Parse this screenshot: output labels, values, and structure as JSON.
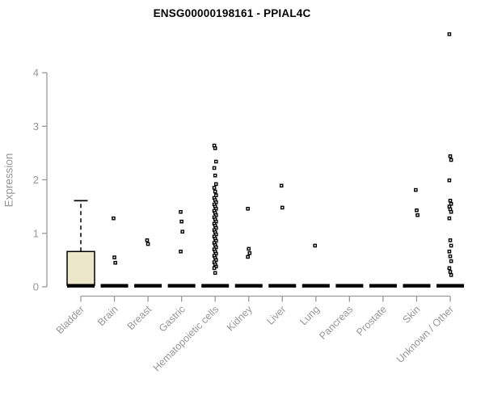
{
  "title": "ENSG00000198161 - PPIAL4C",
  "chart_data": {
    "type": "boxplot",
    "title": "ENSG00000198161 - PPIAL4C",
    "xlabel": "",
    "ylabel": "Expression",
    "ylim": [
      0,
      4.8
    ],
    "yticks": [
      0,
      1,
      2,
      3,
      4
    ],
    "grid": false,
    "legend": false,
    "categories": [
      "Bladder",
      "Brain",
      "Breast",
      "Gastric",
      "Hematopoietic cells",
      "Kidney",
      "Liver",
      "Lung",
      "Pancreas",
      "Prostate",
      "Skin",
      "Unknown / Other"
    ],
    "boxes": [
      {
        "category": "Bladder",
        "q1": 0.03,
        "median": 0.02,
        "q3": 0.66,
        "whisker_low": 0,
        "whisker_high": 1.61,
        "points": []
      },
      {
        "category": "Brain",
        "q1": 0,
        "median": 0.02,
        "q3": 0.04,
        "points": [
          1.28,
          0.55,
          0.45
        ]
      },
      {
        "category": "Breast",
        "q1": 0,
        "median": 0.02,
        "q3": 0.04,
        "points": [
          0.87,
          0.8
        ]
      },
      {
        "category": "Gastric",
        "q1": 0,
        "median": 0.02,
        "q3": 0.04,
        "points": [
          1.4,
          1.22,
          1.03,
          0.66
        ]
      },
      {
        "category": "Hematopoietic cells",
        "q1": 0,
        "median": 0.02,
        "q3": 0.04,
        "points": [
          2.64,
          2.59,
          2.34,
          2.22,
          2.08,
          1.92,
          1.85,
          1.78,
          1.71,
          1.66,
          1.62,
          1.58,
          1.54,
          1.5,
          1.46,
          1.42,
          1.38,
          1.34,
          1.3,
          1.26,
          1.22,
          1.18,
          1.14,
          1.1,
          1.06,
          1.02,
          0.98,
          0.94,
          0.9,
          0.86,
          0.82,
          0.78,
          0.74,
          0.7,
          0.66,
          0.62,
          0.58,
          0.54,
          0.5,
          0.46,
          0.42,
          0.38,
          0.35,
          0.26
        ]
      },
      {
        "category": "Kidney",
        "q1": 0,
        "median": 0.02,
        "q3": 0.04,
        "points": [
          1.46,
          0.71,
          0.63,
          0.56
        ]
      },
      {
        "category": "Liver",
        "q1": 0,
        "median": 0.02,
        "q3": 0.04,
        "points": [
          1.89,
          1.48
        ]
      },
      {
        "category": "Lung",
        "q1": 0,
        "median": 0.02,
        "q3": 0.04,
        "points": [
          0.77
        ]
      },
      {
        "category": "Pancreas",
        "q1": 0,
        "median": 0.02,
        "q3": 0.04,
        "points": []
      },
      {
        "category": "Prostate",
        "q1": 0,
        "median": 0.02,
        "q3": 0.04,
        "points": []
      },
      {
        "category": "Skin",
        "q1": 0,
        "median": 0.02,
        "q3": 0.04,
        "points": [
          1.81,
          1.43,
          1.34
        ]
      },
      {
        "category": "Unknown / Other",
        "q1": 0,
        "median": 0.02,
        "q3": 0.04,
        "points": [
          4.72,
          2.44,
          2.37,
          1.99,
          1.61,
          1.55,
          1.5,
          1.45,
          1.4,
          1.28,
          0.87,
          0.77,
          0.66,
          0.57,
          0.48,
          0.35,
          0.28,
          0.22
        ]
      }
    ],
    "colors": {
      "box_fill": "#ece7cb",
      "box_border": "#000000",
      "median": "#000000",
      "point_stroke": "#000000",
      "point_fill": "#ffffff",
      "axis": "#9a9a9a",
      "tick_text": "#979797",
      "title_text": "#000000",
      "background": "#ffffff"
    }
  }
}
